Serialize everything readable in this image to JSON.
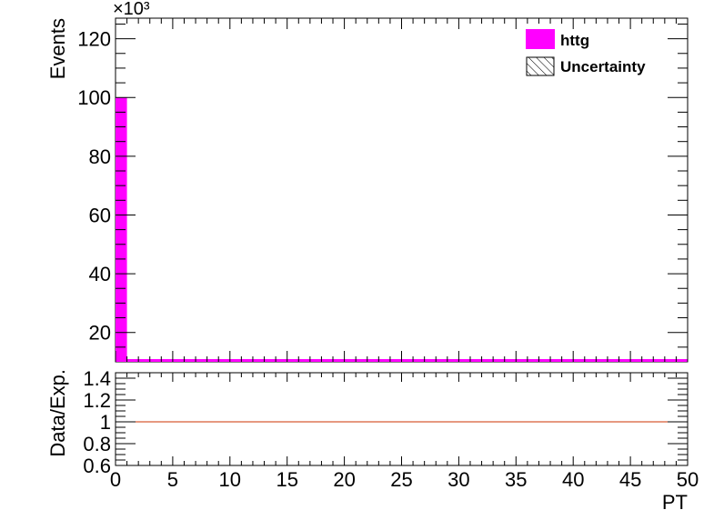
{
  "chart_data": [
    {
      "type": "bar",
      "panel": "main",
      "ylabel": "Events",
      "y_multiplier": "×10³",
      "ylim": [
        10,
        127
      ],
      "xlim": [
        0,
        50
      ],
      "y_ticks": [
        "20",
        "40",
        "60",
        "80",
        "100",
        "120"
      ],
      "series": [
        {
          "name": "httg",
          "color": "#ff00ff",
          "bin_width": 1,
          "x": [
            0
          ],
          "values": [
            100
          ]
        }
      ],
      "legend": {
        "placement": "top-right",
        "entries": [
          {
            "label": "httg",
            "style": "fill",
            "color": "#ff00ff"
          },
          {
            "label": "Uncertainty",
            "style": "hatch",
            "color": "#000000"
          }
        ]
      }
    },
    {
      "type": "line",
      "panel": "ratio",
      "ylabel": "Data/Exp.",
      "xlabel": "PT",
      "xlim": [
        0,
        50
      ],
      "ylim": [
        0.6,
        1.45
      ],
      "x_ticks": [
        "0",
        "5",
        "10",
        "15",
        "20",
        "25",
        "30",
        "35",
        "40",
        "45",
        "50"
      ],
      "y_ticks": [
        "0.6",
        "0.8",
        "1",
        "1.2",
        "1.4"
      ],
      "reference_line": {
        "value": 1,
        "color": "#cc3300"
      }
    }
  ]
}
